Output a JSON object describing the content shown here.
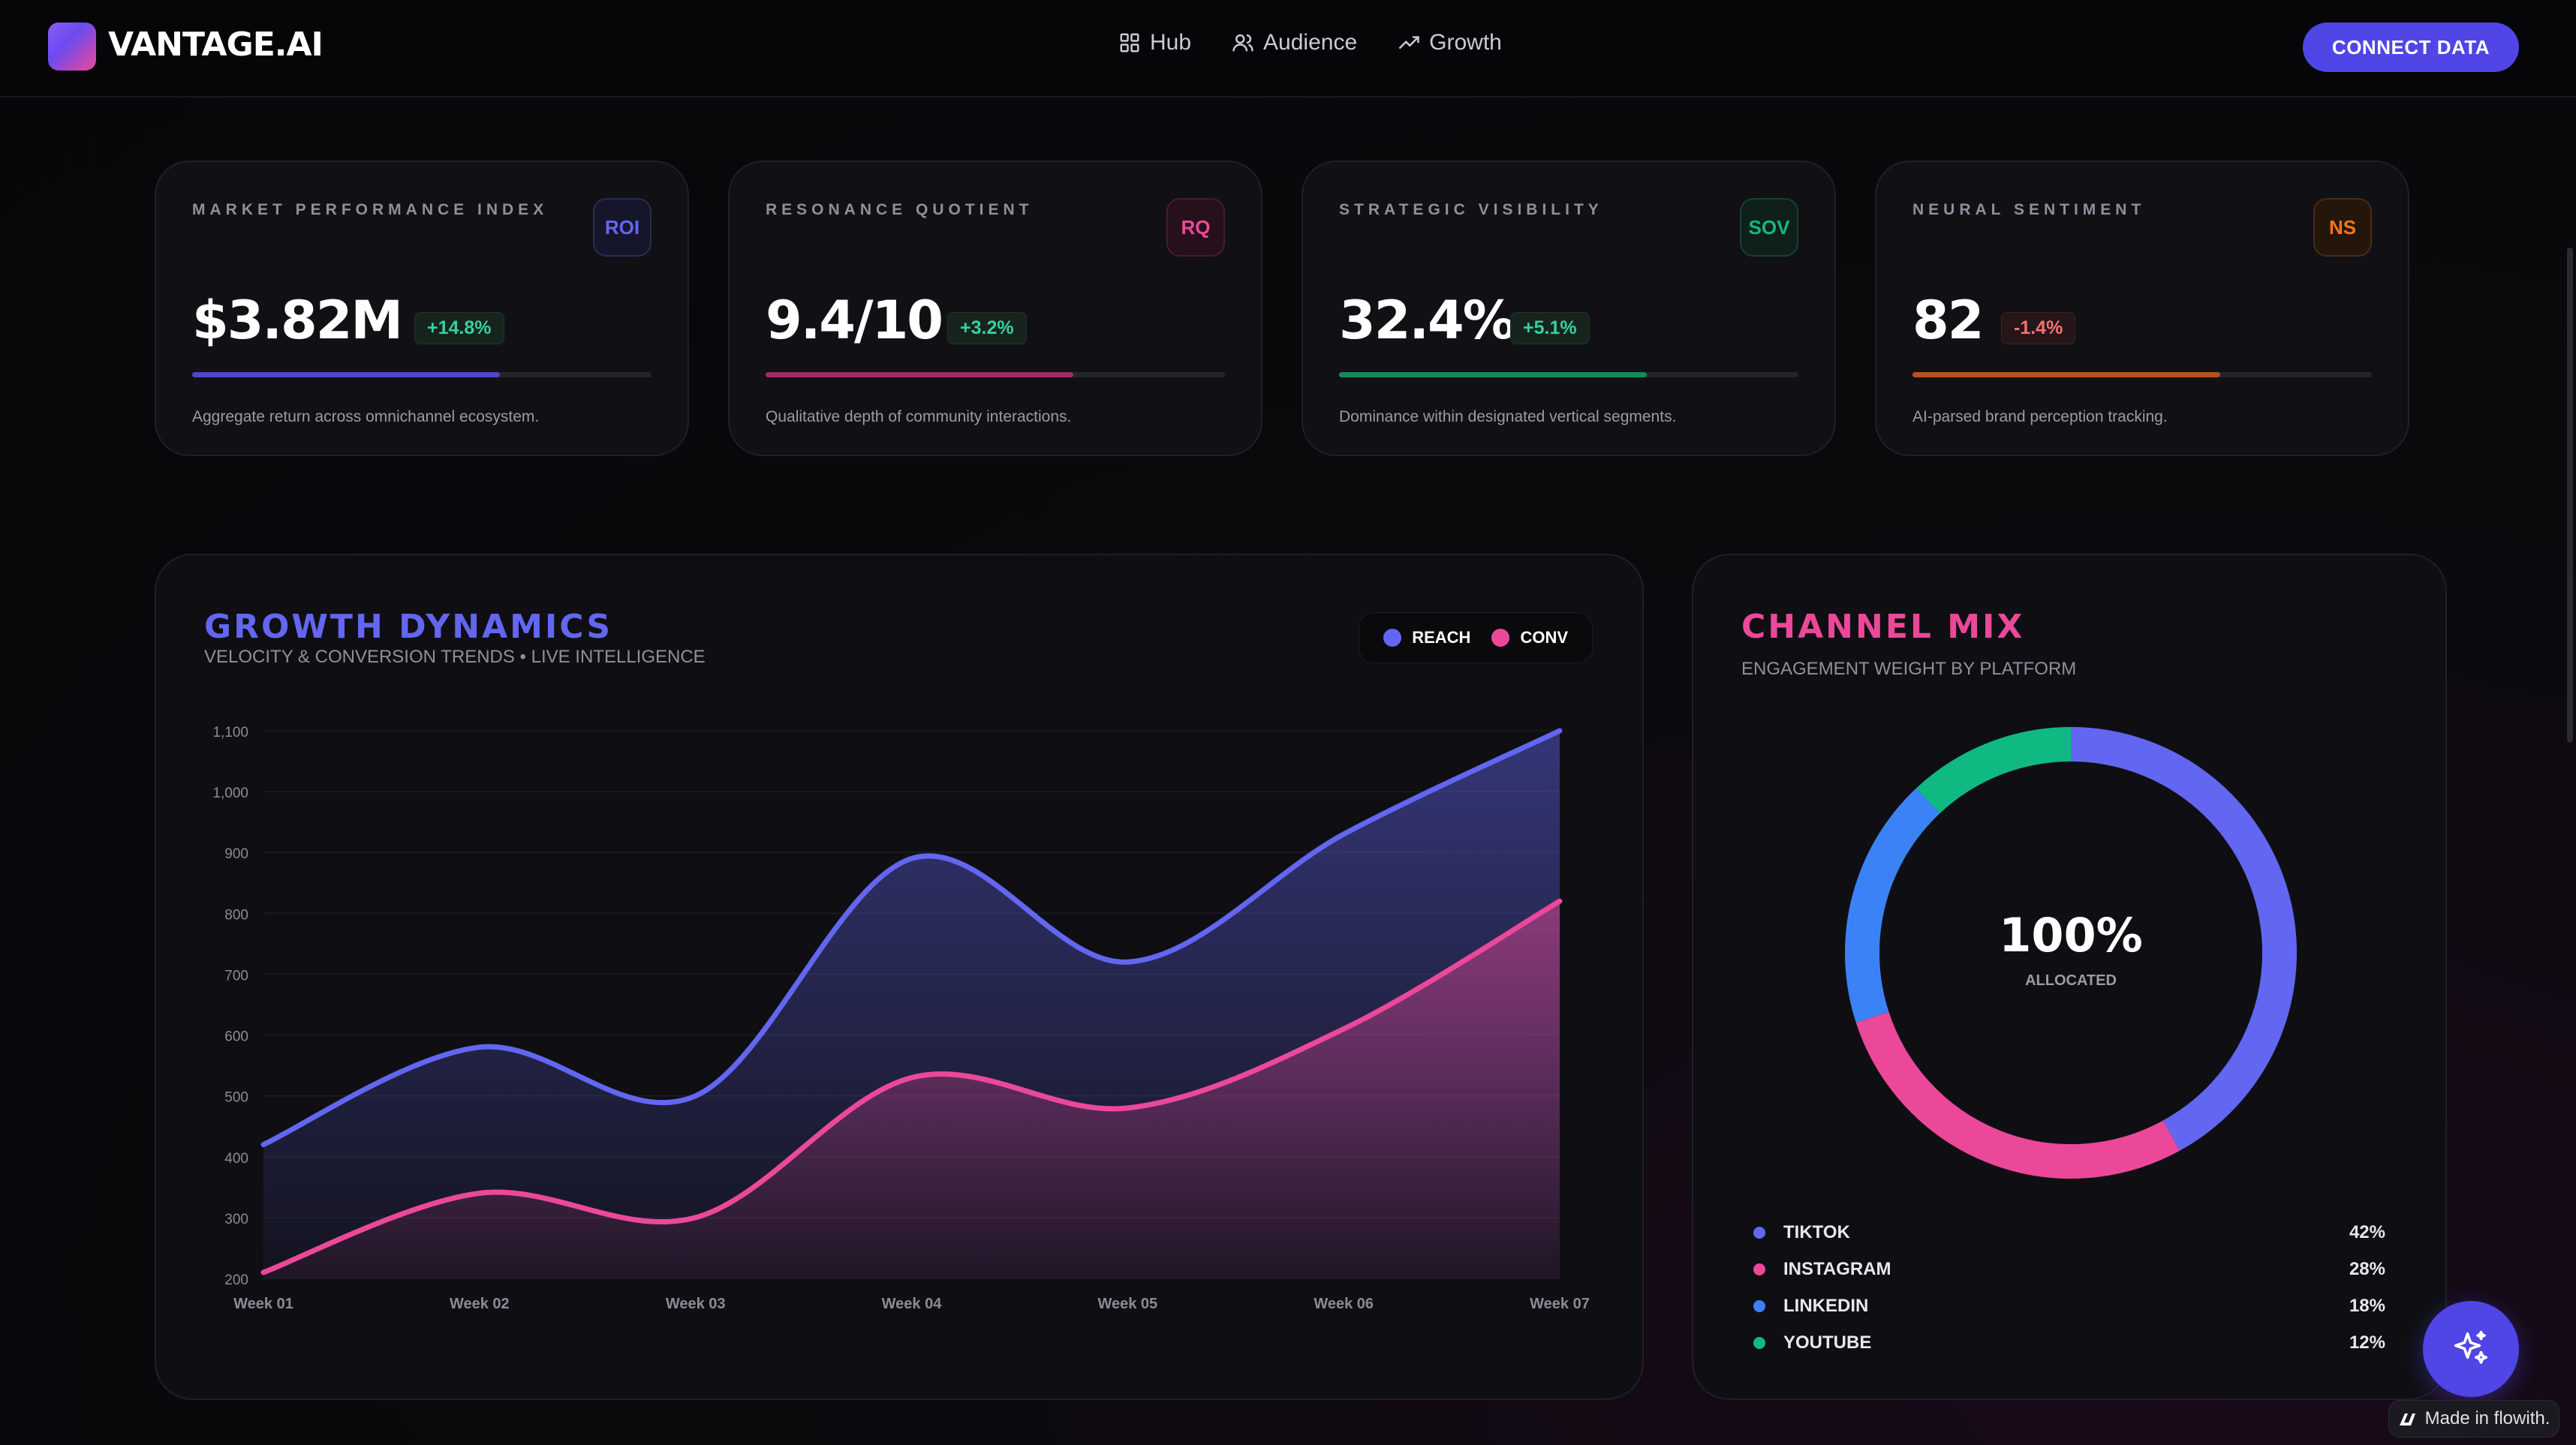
{
  "header": {
    "logo_text": "VANTAGE.AI",
    "nav": [
      {
        "label": "Hub",
        "icon": "grid-icon"
      },
      {
        "label": "Audience",
        "icon": "users-icon"
      },
      {
        "label": "Growth",
        "icon": "trending-up-icon"
      }
    ],
    "cta_label": "CONNECT DATA"
  },
  "kpis": [
    {
      "title": "MARKET PERFORMANCE INDEX",
      "badge": "ROI",
      "value": "$3.82M",
      "delta": "+14.8%",
      "progress": 0.67,
      "description": "Aggregate return across omnichannel ecosystem.",
      "color": "#6366f1",
      "delta_color": "#34d399"
    },
    {
      "title": "RESONANCE QUOTIENT",
      "badge": "RQ",
      "value": "9.4/10",
      "delta": "+3.2%",
      "progress": 0.67,
      "description": "Qualitative depth of community interactions.",
      "color": "#ec4899",
      "delta_color": "#34d399"
    },
    {
      "title": "STRATEGIC VISIBILITY",
      "badge": "SOV",
      "value": "32.4%",
      "delta": "+5.1%",
      "progress": 0.67,
      "description": "Dominance within designated vertical segments.",
      "color": "#10b981",
      "delta_color": "#34d399"
    },
    {
      "title": "NEURAL SENTIMENT",
      "badge": "NS",
      "value": "82",
      "delta": "-1.4%",
      "progress": 0.67,
      "description": "AI-parsed brand perception tracking.",
      "color": "#f97316",
      "delta_color": "#f87171"
    }
  ],
  "growth_panel": {
    "title": "GROWTH DYNAMICS",
    "subtitle": "VELOCITY & CONVERSION TRENDS • LIVE INTELLIGENCE",
    "legend": [
      {
        "name": "REACH",
        "color": "#6366f1"
      },
      {
        "name": "CONV",
        "color": "#ec4899"
      }
    ]
  },
  "channel_panel": {
    "title": "CHANNEL MIX",
    "subtitle": "ENGAGEMENT WEIGHT BY PLATFORM",
    "center_value": "100%",
    "center_label": "ALLOCATED"
  },
  "chart_data": [
    {
      "type": "area",
      "categories": [
        "Week 01",
        "Week 02",
        "Week 03",
        "Week 04",
        "Week 05",
        "Week 06",
        "Week 07"
      ],
      "ylim": [
        200,
        1100
      ],
      "yticks": [
        200,
        300,
        400,
        500,
        600,
        700,
        800,
        900,
        1000,
        1100
      ],
      "ytick_labels": [
        "200",
        "300",
        "400",
        "500",
        "600",
        "700",
        "800",
        "900",
        "1,000",
        "1,100"
      ],
      "grid": true,
      "legend": "top-right",
      "series": [
        {
          "name": "REACH",
          "color": "#6366f1",
          "values": [
            420,
            580,
            500,
            890,
            720,
            930,
            1100
          ]
        },
        {
          "name": "CONV",
          "color": "#ec4899",
          "values": [
            210,
            340,
            300,
            530,
            480,
            610,
            820
          ]
        }
      ]
    },
    {
      "type": "pie",
      "categories": [
        "TIKTOK",
        "INSTAGRAM",
        "LINKEDIN",
        "YOUTUBE"
      ],
      "values": [
        42,
        28,
        18,
        12
      ],
      "value_labels": [
        "42%",
        "28%",
        "18%",
        "12%"
      ],
      "colors": [
        "#6366f1",
        "#ec4899",
        "#3b82f6",
        "#10b981"
      ]
    }
  ],
  "fab": {
    "icon": "sparkles-icon"
  },
  "footer_badge": {
    "label": "Made in flowith.",
    "icon": "flowith-logo-icon"
  }
}
